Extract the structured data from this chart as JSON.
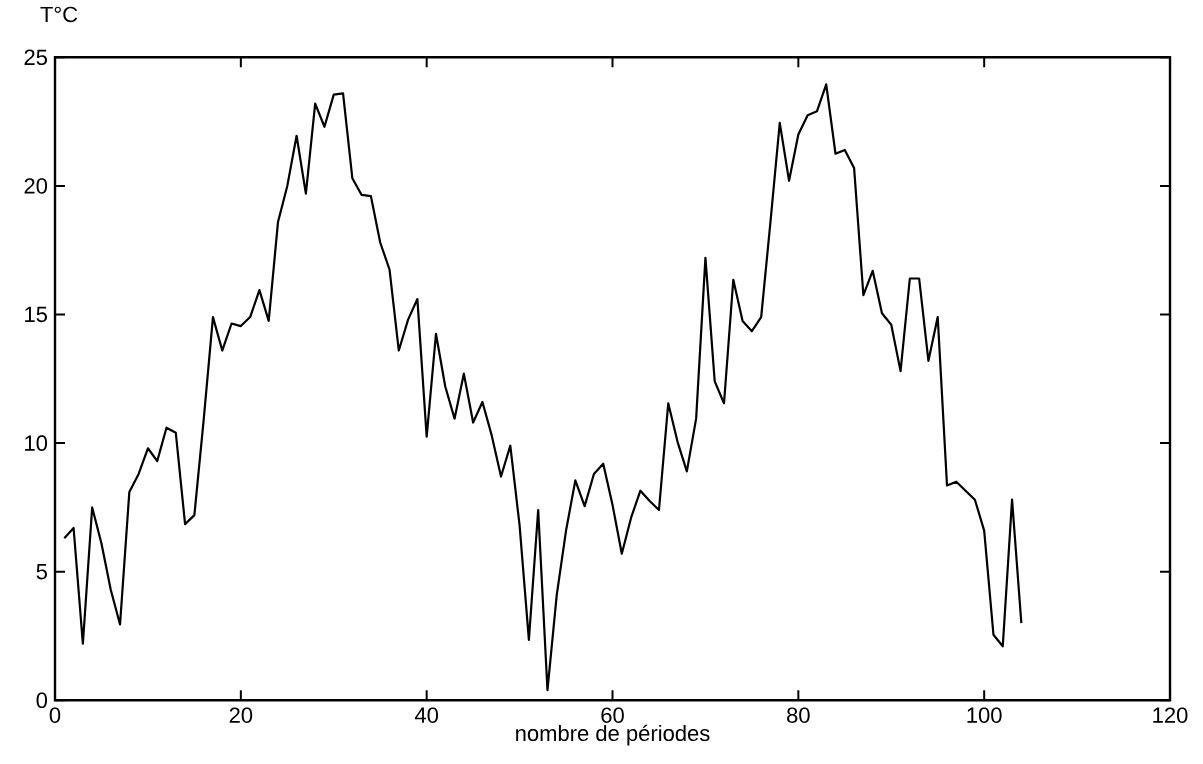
{
  "chart_data": {
    "type": "line",
    "xlabel": "nombre de périodes",
    "ylabel": "T°C",
    "xlim": [
      0,
      120
    ],
    "ylim": [
      0,
      25
    ],
    "xticks": [
      0,
      20,
      40,
      60,
      80,
      100,
      120
    ],
    "yticks": [
      0,
      5,
      10,
      15,
      20,
      25
    ],
    "x": [
      1,
      2,
      3,
      4,
      5,
      6,
      7,
      8,
      9,
      10,
      11,
      12,
      13,
      14,
      15,
      16,
      17,
      18,
      19,
      20,
      21,
      22,
      23,
      24,
      25,
      26,
      27,
      28,
      29,
      30,
      31,
      32,
      33,
      34,
      35,
      36,
      37,
      38,
      39,
      40,
      41,
      42,
      43,
      44,
      45,
      46,
      47,
      48,
      49,
      50,
      51,
      52,
      53,
      54,
      55,
      56,
      57,
      58,
      59,
      60,
      61,
      62,
      63,
      64,
      65,
      66,
      67,
      68,
      69,
      70,
      71,
      72,
      73,
      74,
      75,
      76,
      77,
      78,
      79,
      80,
      81,
      82,
      83,
      84,
      85,
      86,
      87,
      88,
      89,
      90,
      91,
      92,
      93,
      94,
      95,
      96,
      97,
      98,
      99,
      100,
      101,
      102,
      103,
      104
    ],
    "series": [
      {
        "color": "#000000",
        "values": [
          6.3,
          6.7,
          2.2,
          7.5,
          6.1,
          4.3,
          2.95,
          8.1,
          8.8,
          9.8,
          9.3,
          10.6,
          10.4,
          6.85,
          7.2,
          10.9,
          14.9,
          13.6,
          14.65,
          14.55,
          14.9,
          15.95,
          14.75,
          18.6,
          20.0,
          21.95,
          19.7,
          23.2,
          22.3,
          23.55,
          23.6,
          20.3,
          19.65,
          19.6,
          17.8,
          16.75,
          13.6,
          14.8,
          15.6,
          10.25,
          14.25,
          12.2,
          10.95,
          12.7,
          10.8,
          11.6,
          10.3,
          8.7,
          9.9,
          6.8,
          2.35,
          7.4,
          0.4,
          4.1,
          6.6,
          8.55,
          7.55,
          8.8,
          9.2,
          7.6,
          5.7,
          7.1,
          8.15,
          7.75,
          7.4,
          11.55,
          10.05,
          8.9,
          10.95,
          17.2,
          12.4,
          11.55,
          16.35,
          14.75,
          14.35,
          14.9,
          18.6,
          22.45,
          20.2,
          22.0,
          22.75,
          22.9,
          23.95,
          21.25,
          21.4,
          20.7,
          15.75,
          16.7,
          15.05,
          14.6,
          12.8,
          16.4,
          16.4,
          13.2,
          14.9,
          8.35,
          8.5,
          8.15,
          7.8,
          6.6,
          2.55,
          2.1,
          7.8,
          3.0
        ]
      }
    ]
  }
}
